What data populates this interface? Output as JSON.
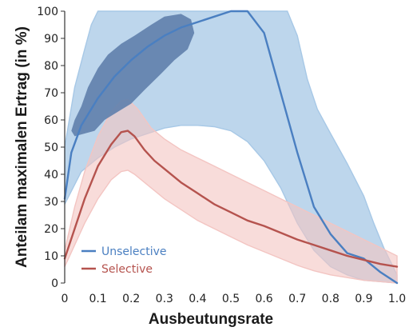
{
  "chart_data": {
    "type": "line",
    "xlabel": "Ausbeutungsrate",
    "ylabel": "Anteilam maximalen Ertrag (in %)",
    "xlim": [
      0,
      1.0
    ],
    "ylim": [
      0,
      100
    ],
    "x_ticks": [
      "0",
      "0.1",
      "0.2",
      "0.3",
      "0.4",
      "0.5",
      "0.6",
      "0.7",
      "0.8",
      "0.9",
      "1.0"
    ],
    "y_ticks": [
      "0",
      "10",
      "20",
      "30",
      "40",
      "50",
      "60",
      "70",
      "80",
      "90",
      "100"
    ],
    "grid": false,
    "legend_position": "bottom-left",
    "series": [
      {
        "name": "Unselective",
        "color": "#4a7fc1",
        "band_color": "#a7c8e6",
        "line": [
          [
            0,
            31
          ],
          [
            0.02,
            48
          ],
          [
            0.05,
            58
          ],
          [
            0.1,
            68
          ],
          [
            0.15,
            76
          ],
          [
            0.2,
            82
          ],
          [
            0.25,
            87
          ],
          [
            0.3,
            91
          ],
          [
            0.35,
            94
          ],
          [
            0.4,
            96
          ],
          [
            0.45,
            98
          ],
          [
            0.5,
            100
          ],
          [
            0.55,
            100
          ],
          [
            0.6,
            92
          ],
          [
            0.65,
            70
          ],
          [
            0.7,
            48
          ],
          [
            0.75,
            28
          ],
          [
            0.8,
            18
          ],
          [
            0.85,
            11
          ],
          [
            0.9,
            9
          ],
          [
            0.95,
            4
          ],
          [
            1.0,
            0
          ]
        ],
        "upper": [
          [
            0,
            50
          ],
          [
            0.03,
            72
          ],
          [
            0.06,
            86
          ],
          [
            0.08,
            95
          ],
          [
            0.1,
            100
          ],
          [
            0.67,
            100
          ],
          [
            0.7,
            91
          ],
          [
            0.73,
            75
          ],
          [
            0.76,
            64
          ],
          [
            0.8,
            55
          ],
          [
            0.85,
            44
          ],
          [
            0.9,
            32
          ],
          [
            0.93,
            22
          ],
          [
            0.96,
            13
          ],
          [
            1.0,
            3
          ]
        ],
        "lower": [
          [
            0,
            29
          ],
          [
            0.05,
            41
          ],
          [
            0.1,
            46
          ],
          [
            0.15,
            50
          ],
          [
            0.2,
            53
          ],
          [
            0.25,
            55
          ],
          [
            0.3,
            57
          ],
          [
            0.35,
            58
          ],
          [
            0.4,
            58
          ],
          [
            0.45,
            57.5
          ],
          [
            0.5,
            56
          ],
          [
            0.55,
            52
          ],
          [
            0.6,
            45
          ],
          [
            0.65,
            35
          ],
          [
            0.7,
            22
          ],
          [
            0.75,
            12
          ],
          [
            0.8,
            6
          ],
          [
            0.85,
            3
          ],
          [
            0.9,
            1
          ],
          [
            1.0,
            0
          ]
        ],
        "core_region": [
          [
            0.02,
            56
          ],
          [
            0.03,
            60
          ],
          [
            0.05,
            65
          ],
          [
            0.07,
            72
          ],
          [
            0.1,
            79
          ],
          [
            0.13,
            84
          ],
          [
            0.17,
            88
          ],
          [
            0.21,
            91
          ],
          [
            0.26,
            95
          ],
          [
            0.3,
            98
          ],
          [
            0.35,
            99
          ],
          [
            0.38,
            97
          ],
          [
            0.39,
            92
          ],
          [
            0.37,
            86
          ],
          [
            0.33,
            82
          ],
          [
            0.29,
            77
          ],
          [
            0.24,
            71
          ],
          [
            0.2,
            66
          ],
          [
            0.16,
            63
          ],
          [
            0.12,
            60
          ],
          [
            0.09,
            56
          ],
          [
            0.06,
            55
          ],
          [
            0.03,
            54
          ]
        ]
      },
      {
        "name": "Selective",
        "color": "#b5534e",
        "band_color": "#f3c5c2",
        "line": [
          [
            0,
            9
          ],
          [
            0.03,
            20
          ],
          [
            0.06,
            31
          ],
          [
            0.1,
            43
          ],
          [
            0.14,
            51
          ],
          [
            0.17,
            55.5
          ],
          [
            0.19,
            56
          ],
          [
            0.21,
            54
          ],
          [
            0.24,
            49
          ],
          [
            0.27,
            45
          ],
          [
            0.3,
            42
          ],
          [
            0.35,
            37
          ],
          [
            0.4,
            33
          ],
          [
            0.45,
            29
          ],
          [
            0.5,
            26
          ],
          [
            0.55,
            23
          ],
          [
            0.6,
            21
          ],
          [
            0.65,
            18.5
          ],
          [
            0.7,
            16
          ],
          [
            0.75,
            14
          ],
          [
            0.8,
            12
          ],
          [
            0.85,
            10
          ],
          [
            0.9,
            8.5
          ],
          [
            0.95,
            7
          ],
          [
            1.0,
            6
          ]
        ],
        "upper": [
          [
            0,
            12
          ],
          [
            0.03,
            28
          ],
          [
            0.06,
            41
          ],
          [
            0.1,
            54
          ],
          [
            0.14,
            63
          ],
          [
            0.17,
            67
          ],
          [
            0.19,
            67.5
          ],
          [
            0.22,
            64
          ],
          [
            0.26,
            57
          ],
          [
            0.3,
            53
          ],
          [
            0.35,
            49
          ],
          [
            0.4,
            46
          ],
          [
            0.45,
            43
          ],
          [
            0.5,
            40
          ],
          [
            0.55,
            37
          ],
          [
            0.6,
            34
          ],
          [
            0.65,
            31
          ],
          [
            0.7,
            28
          ],
          [
            0.75,
            25
          ],
          [
            0.8,
            22
          ],
          [
            0.85,
            19
          ],
          [
            0.9,
            16
          ],
          [
            0.95,
            13
          ],
          [
            1.0,
            10
          ]
        ],
        "lower": [
          [
            0,
            6
          ],
          [
            0.03,
            14
          ],
          [
            0.06,
            22
          ],
          [
            0.1,
            31
          ],
          [
            0.14,
            38
          ],
          [
            0.17,
            41
          ],
          [
            0.19,
            41.5
          ],
          [
            0.21,
            40
          ],
          [
            0.25,
            36
          ],
          [
            0.3,
            31
          ],
          [
            0.35,
            27
          ],
          [
            0.4,
            23
          ],
          [
            0.45,
            20
          ],
          [
            0.5,
            17
          ],
          [
            0.55,
            14
          ],
          [
            0.6,
            11.5
          ],
          [
            0.65,
            9
          ],
          [
            0.7,
            6.5
          ],
          [
            0.75,
            4.5
          ],
          [
            0.8,
            3
          ],
          [
            0.85,
            2
          ],
          [
            0.9,
            1
          ],
          [
            0.95,
            0.5
          ],
          [
            1.0,
            0
          ]
        ]
      }
    ]
  }
}
